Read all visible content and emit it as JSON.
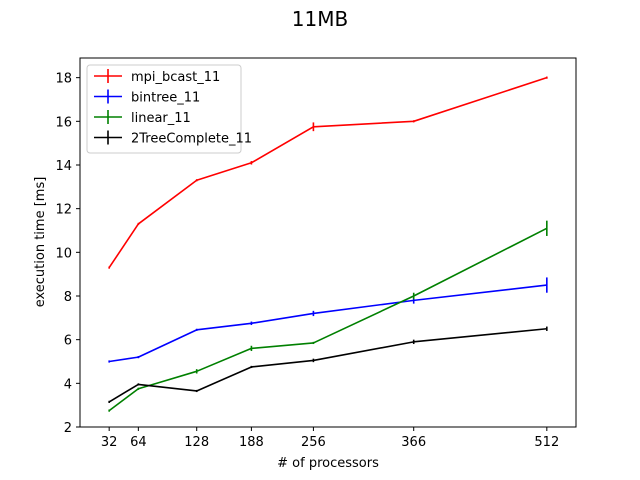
{
  "chart_data": {
    "type": "line",
    "title": "11MB",
    "xlabel": "# of processors",
    "ylabel": "execution time [ms]",
    "x": [
      32,
      64,
      128,
      188,
      256,
      366,
      512
    ],
    "x_tick_labels": [
      "32",
      "64",
      "128",
      "188",
      "256",
      "366",
      "512"
    ],
    "xlim": [
      0,
      544
    ],
    "ylim": [
      2,
      18.9
    ],
    "y_ticks": [
      2,
      4,
      6,
      8,
      10,
      12,
      14,
      16,
      18
    ],
    "y_tick_labels": [
      "2",
      "4",
      "6",
      "8",
      "10",
      "12",
      "14",
      "16",
      "18"
    ],
    "grid": false,
    "legend_position": "top-left",
    "series": [
      {
        "name": "mpi_bcast_11",
        "color": "#ff0000",
        "values": [
          9.3,
          11.3,
          13.3,
          14.1,
          15.75,
          16.0,
          18.0
        ],
        "errors": [
          0.05,
          0.05,
          0.05,
          0.08,
          0.2,
          0.05,
          0.05
        ]
      },
      {
        "name": "bintree_11",
        "color": "#0000ff",
        "values": [
          5.0,
          5.2,
          6.45,
          6.75,
          7.2,
          7.8,
          8.5
        ],
        "errors": [
          0.05,
          0.05,
          0.05,
          0.08,
          0.12,
          0.15,
          0.35
        ]
      },
      {
        "name": "linear_11",
        "color": "#008000",
        "values": [
          2.75,
          3.75,
          4.55,
          5.6,
          5.85,
          8.0,
          11.1
        ],
        "errors": [
          0.05,
          0.05,
          0.1,
          0.12,
          0.05,
          0.15,
          0.35
        ]
      },
      {
        "name": "2TreeComplete_11",
        "color": "#000000",
        "values": [
          3.15,
          3.95,
          3.65,
          4.75,
          5.05,
          5.9,
          6.5
        ],
        "errors": [
          0.05,
          0.05,
          0.05,
          0.05,
          0.08,
          0.1,
          0.1
        ]
      }
    ]
  }
}
